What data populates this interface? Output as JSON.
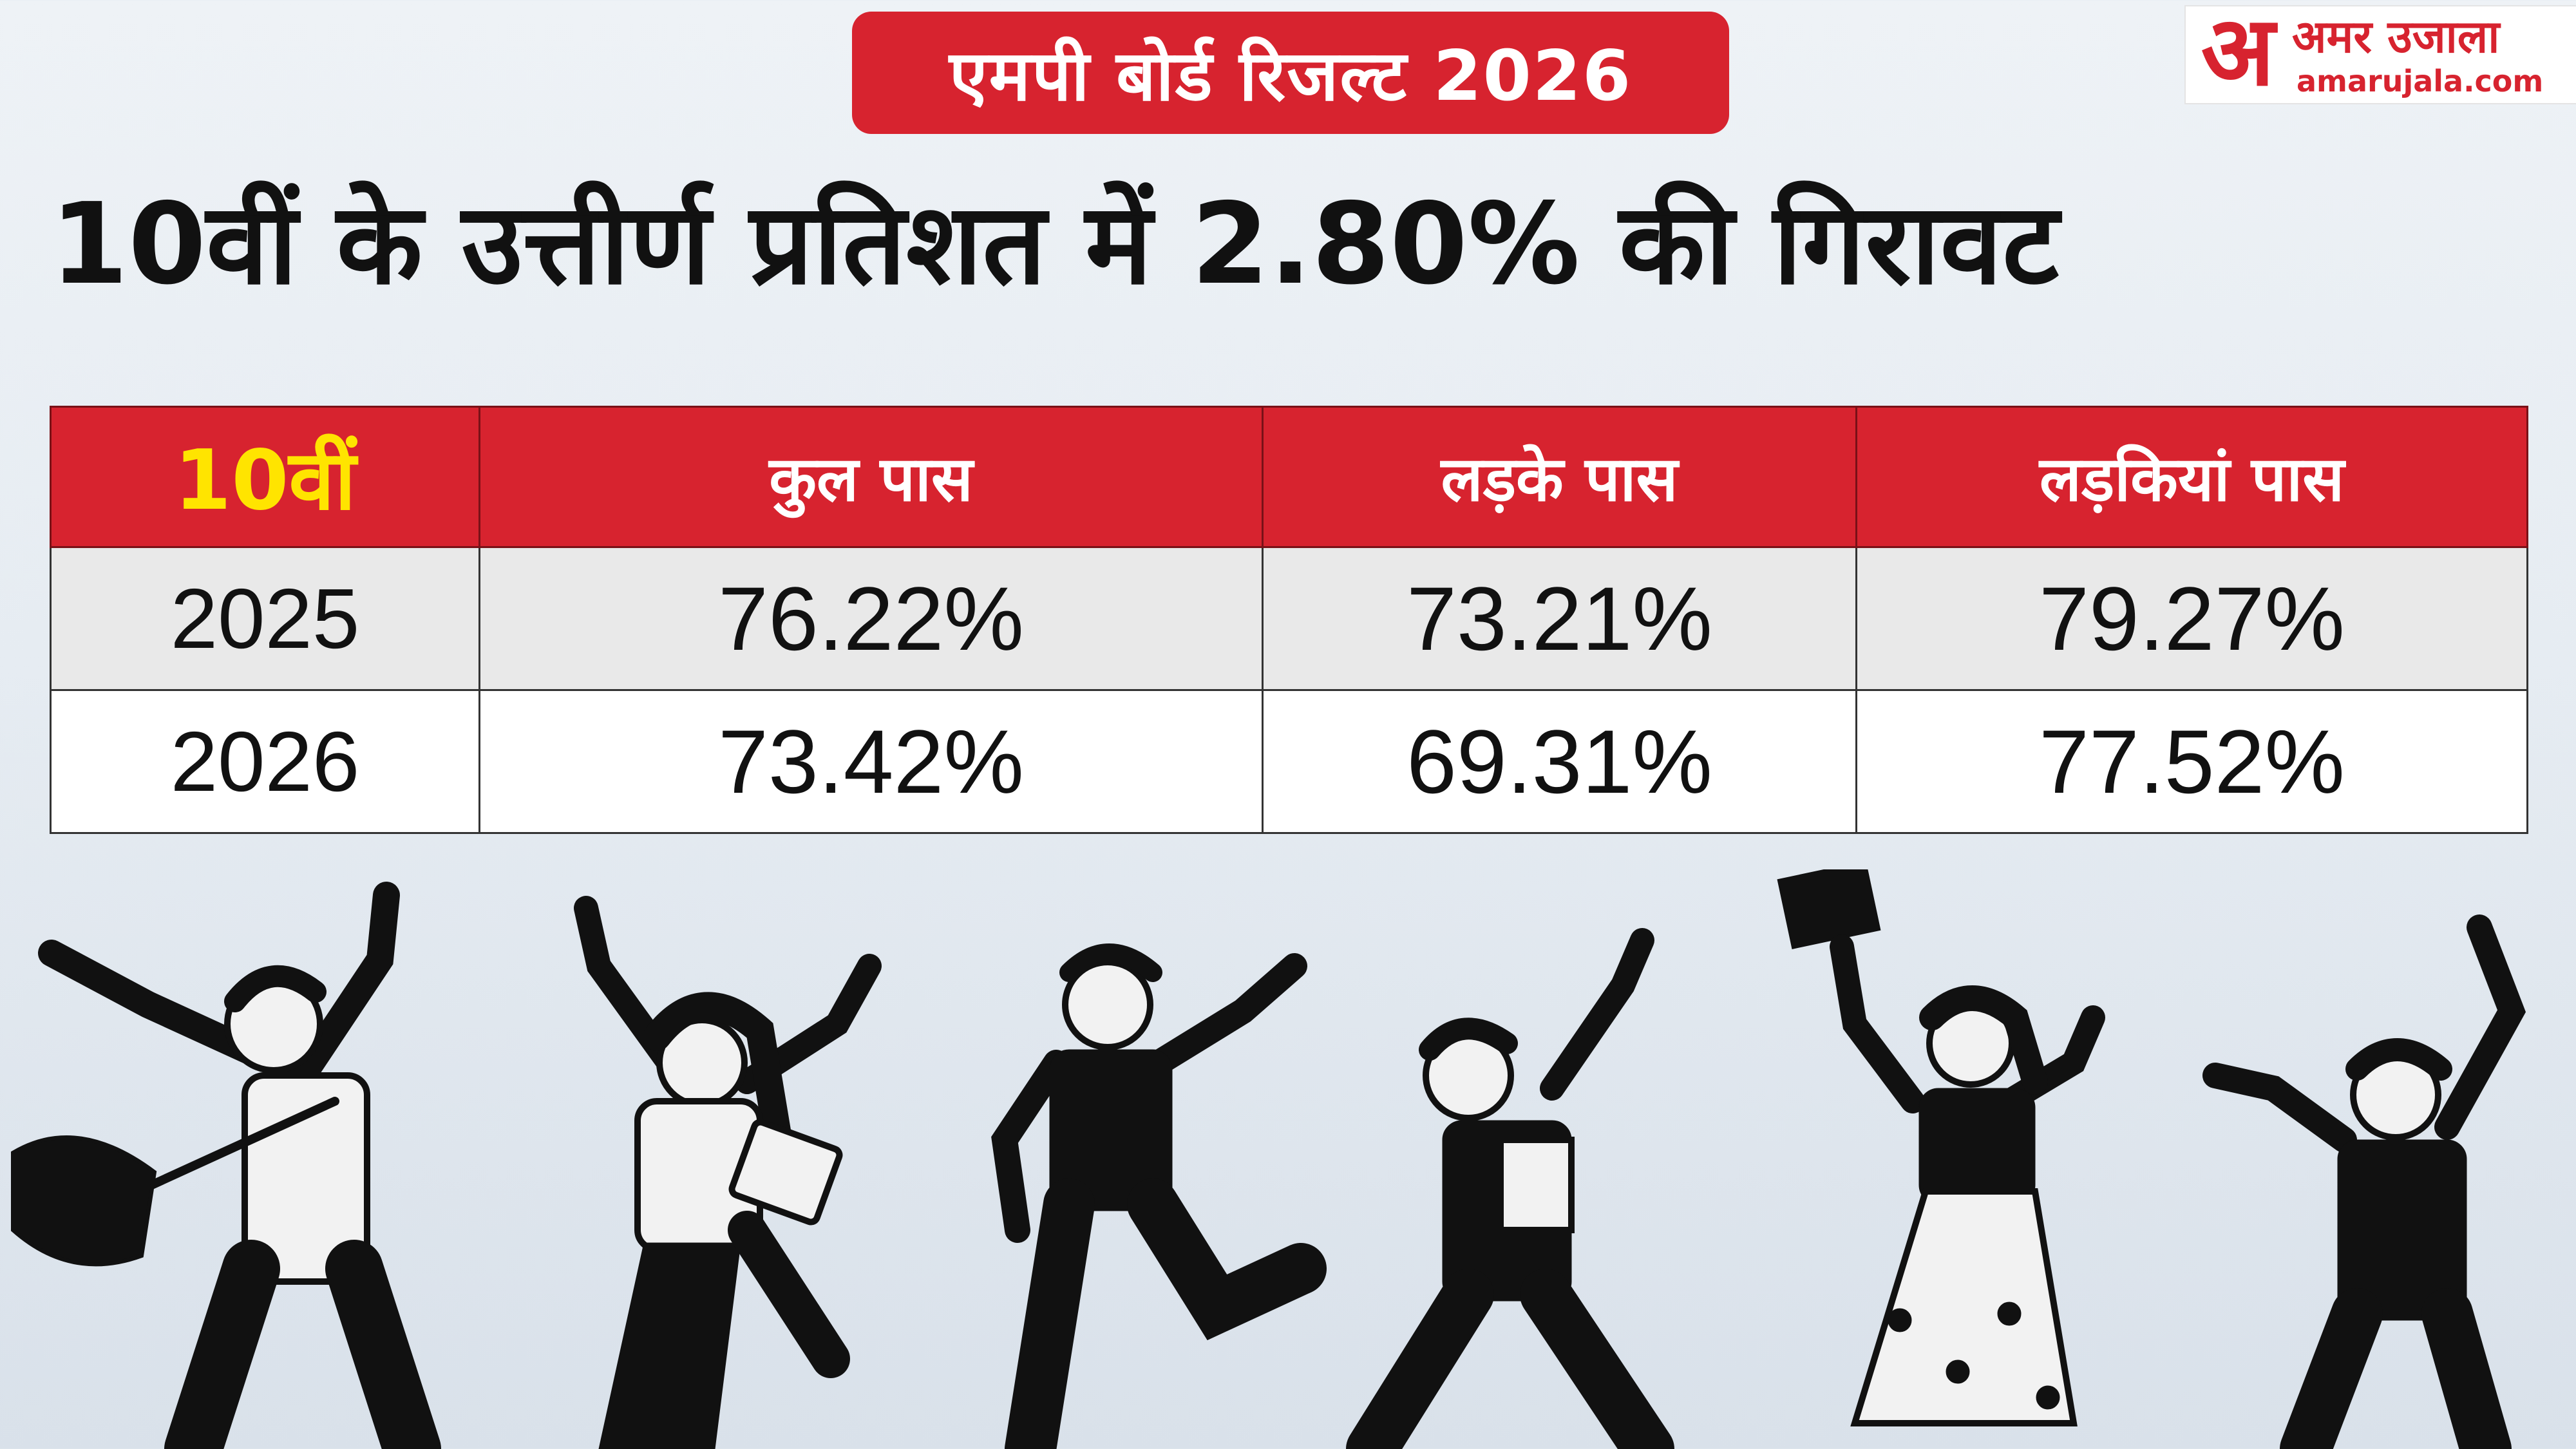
{
  "header": {
    "tag": "एमपी बोर्ड रिजल्ट 2026",
    "headline": "10वीं के उत्तीर्ण प्रतिशत में 2.80% की गिरावट"
  },
  "logo": {
    "mark": "अ",
    "name": "अमर उजाला",
    "url": "amarujala.com"
  },
  "table": {
    "columns": [
      "10वीं",
      "कुल पास",
      "लड़के पास",
      "लड़कियां पास"
    ],
    "rows": [
      {
        "year": "2025",
        "total": "76.22%",
        "boys": "73.21%",
        "girls": "79.27%"
      },
      {
        "year": "2026",
        "total": "73.42%",
        "boys": "69.31%",
        "girls": "77.52%"
      }
    ]
  },
  "colors": {
    "accent_red": "#d7232f",
    "class_label_yellow": "#ffe400",
    "text": "#111111"
  }
}
